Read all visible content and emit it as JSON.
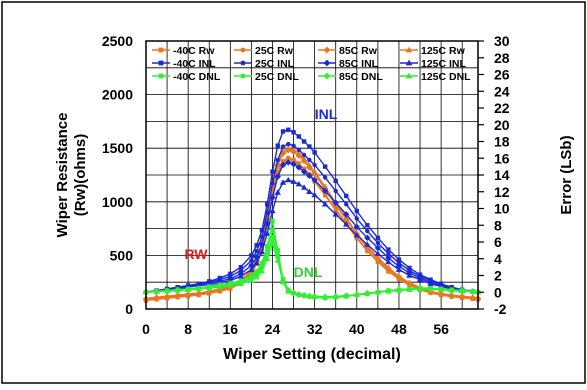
{
  "chart_data": {
    "type": "line",
    "x": [
      0,
      2,
      4,
      6,
      8,
      10,
      12,
      14,
      16,
      18,
      20,
      21,
      22,
      23,
      24,
      25,
      26,
      27,
      28,
      29,
      30,
      31,
      32,
      34,
      36,
      38,
      40,
      42,
      44,
      46,
      48,
      50,
      52,
      54,
      56,
      58,
      60,
      62,
      63
    ],
    "xlabel": "Wiper Setting (decimal)",
    "ylabel_left": [
      "Wiper Resistance",
      "(Rw)(ohms)"
    ],
    "ylabel_right": "Error (LSb)",
    "xlim": [
      0,
      63
    ],
    "ylim_left": [
      0,
      2500
    ],
    "ylim_right": [
      -2,
      30
    ],
    "x_ticks": [
      "0",
      "8",
      "16",
      "24",
      "32",
      "40",
      "48",
      "56"
    ],
    "y_ticks_left": [
      "0",
      "500",
      "1000",
      "1500",
      "2000",
      "2500"
    ],
    "y_ticks_right": [
      "-2",
      "0",
      "2",
      "4",
      "6",
      "8",
      "10",
      "12",
      "14",
      "16",
      "18",
      "20",
      "22",
      "24",
      "26",
      "28",
      "30"
    ],
    "grid": true,
    "legend_position": "top",
    "annotations": [
      {
        "text": "INL",
        "color": "#1a2ad6"
      },
      {
        "text": "RW",
        "color": "#e01b1b"
      },
      {
        "text": "DNL",
        "color": "#33cc33"
      }
    ],
    "series": [
      {
        "name": "-40C Rw",
        "axis": "left",
        "color": "#e87722",
        "marker": "square",
        "values": [
          80,
          90,
          100,
          110,
          120,
          130,
          145,
          165,
          190,
          240,
          330,
          420,
          560,
          780,
          1060,
          1270,
          1370,
          1400,
          1385,
          1350,
          1300,
          1250,
          1190,
          1060,
          920,
          790,
          660,
          540,
          440,
          350,
          280,
          220,
          180,
          150,
          130,
          115,
          105,
          95,
          90
        ]
      },
      {
        "name": "25C Rw",
        "axis": "left",
        "color": "#e87722",
        "marker": "circle",
        "values": [
          90,
          100,
          110,
          120,
          130,
          140,
          155,
          175,
          200,
          250,
          340,
          430,
          570,
          790,
          1070,
          1280,
          1380,
          1410,
          1395,
          1360,
          1310,
          1260,
          1200,
          1070,
          930,
          800,
          670,
          550,
          450,
          360,
          290,
          230,
          185,
          155,
          135,
          120,
          110,
          100,
          95
        ]
      },
      {
        "name": "85C Rw",
        "axis": "left",
        "color": "#e87722",
        "marker": "diamond",
        "values": [
          95,
          105,
          115,
          125,
          135,
          145,
          160,
          180,
          210,
          260,
          350,
          450,
          600,
          830,
          1120,
          1340,
          1450,
          1480,
          1465,
          1430,
          1380,
          1320,
          1260,
          1120,
          970,
          835,
          700,
          575,
          470,
          375,
          300,
          240,
          195,
          160,
          140,
          125,
          115,
          105,
          100
        ]
      },
      {
        "name": "125C Rw",
        "axis": "left",
        "color": "#e87722",
        "marker": "triangle",
        "values": [
          100,
          110,
          120,
          130,
          140,
          150,
          165,
          190,
          220,
          270,
          360,
          460,
          620,
          850,
          1140,
          1360,
          1470,
          1500,
          1485,
          1450,
          1400,
          1340,
          1280,
          1140,
          990,
          850,
          710,
          585,
          480,
          385,
          305,
          245,
          200,
          165,
          145,
          130,
          120,
          110,
          105
        ]
      },
      {
        "name": "-40C INL",
        "axis": "right",
        "color": "#1a2ad6",
        "marker": "square",
        "values": [
          0,
          0.2,
          0.4,
          0.6,
          0.8,
          1.0,
          1.3,
          1.7,
          2.2,
          3.0,
          4.4,
          5.6,
          7.4,
          10.5,
          14.4,
          17.5,
          19.2,
          19.4,
          19.1,
          18.6,
          18.0,
          17.4,
          16.7,
          15.0,
          13.3,
          11.5,
          9.7,
          8.0,
          6.5,
          5.1,
          3.9,
          2.9,
          2.1,
          1.5,
          1.0,
          0.6,
          0.3,
          0.1,
          0
        ]
      },
      {
        "name": "25C INL",
        "axis": "right",
        "color": "#1a2ad6",
        "marker": "circle",
        "values": [
          0,
          0.2,
          0.4,
          0.6,
          0.8,
          1.0,
          1.2,
          1.5,
          1.9,
          2.6,
          3.8,
          4.9,
          6.6,
          9.5,
          13.0,
          15.8,
          17.4,
          17.7,
          17.5,
          17.0,
          16.4,
          15.8,
          15.2,
          13.7,
          12.1,
          10.5,
          8.8,
          7.3,
          5.9,
          4.6,
          3.5,
          2.6,
          1.9,
          1.4,
          0.9,
          0.5,
          0.3,
          0.1,
          0
        ]
      },
      {
        "name": "85C INL",
        "axis": "right",
        "color": "#1a2ad6",
        "marker": "diamond",
        "values": [
          0,
          0.1,
          0.3,
          0.5,
          0.7,
          0.9,
          1.1,
          1.3,
          1.6,
          2.2,
          3.2,
          4.2,
          5.7,
          8.2,
          11.3,
          13.8,
          15.2,
          15.5,
          15.3,
          14.9,
          14.4,
          13.9,
          13.4,
          12.1,
          10.7,
          9.3,
          7.8,
          6.5,
          5.3,
          4.1,
          3.1,
          2.3,
          1.7,
          1.2,
          0.8,
          0.5,
          0.2,
          0.1,
          0
        ]
      },
      {
        "name": "125C INL",
        "axis": "right",
        "color": "#1a2ad6",
        "marker": "triangle",
        "values": [
          0,
          0.1,
          0.3,
          0.4,
          0.6,
          0.8,
          0.9,
          1.1,
          1.4,
          1.9,
          2.7,
          3.5,
          4.8,
          7.0,
          9.7,
          11.9,
          13.1,
          13.4,
          13.2,
          12.9,
          12.5,
          12.0,
          11.6,
          10.5,
          9.3,
          8.1,
          6.8,
          5.7,
          4.6,
          3.6,
          2.7,
          2.0,
          1.5,
          1.0,
          0.7,
          0.4,
          0.2,
          0.1,
          0
        ]
      },
      {
        "name": "-40C DNL",
        "axis": "right",
        "color": "#33ee33",
        "marker": "square",
        "values": [
          0,
          0.1,
          0.2,
          0.3,
          0.4,
          0.5,
          0.7,
          0.9,
          1.1,
          1.4,
          2.0,
          2.5,
          3.5,
          5.5,
          8.5,
          5.0,
          1.6,
          0.3,
          -0.1,
          -0.3,
          -0.4,
          -0.5,
          -0.6,
          -0.7,
          -0.6,
          -0.5,
          -0.3,
          -0.2,
          0,
          0.2,
          0.3,
          0.4,
          0.5,
          0.5,
          0.4,
          0.3,
          0.2,
          0.1,
          0
        ]
      },
      {
        "name": "25C DNL",
        "axis": "right",
        "color": "#33ee33",
        "marker": "circle",
        "values": [
          0,
          0.1,
          0.2,
          0.3,
          0.4,
          0.5,
          0.6,
          0.8,
          1.0,
          1.3,
          1.8,
          2.3,
          3.2,
          5.0,
          7.5,
          4.6,
          1.4,
          0.2,
          -0.1,
          -0.3,
          -0.4,
          -0.5,
          -0.6,
          -0.6,
          -0.6,
          -0.5,
          -0.3,
          -0.2,
          0,
          0.2,
          0.3,
          0.4,
          0.5,
          0.5,
          0.4,
          0.3,
          0.2,
          0.1,
          0
        ]
      },
      {
        "name": "85C DNL",
        "axis": "right",
        "color": "#33ee33",
        "marker": "diamond",
        "values": [
          0,
          0.1,
          0.2,
          0.3,
          0.3,
          0.4,
          0.5,
          0.7,
          0.9,
          1.2,
          1.6,
          2.0,
          2.9,
          4.5,
          6.5,
          4.2,
          1.3,
          0.2,
          -0.1,
          -0.3,
          -0.4,
          -0.5,
          -0.5,
          -0.6,
          -0.5,
          -0.4,
          -0.3,
          -0.1,
          0,
          0.2,
          0.3,
          0.4,
          0.4,
          0.4,
          0.3,
          0.2,
          0.2,
          0.1,
          0
        ]
      },
      {
        "name": "125C DNL",
        "axis": "right",
        "color": "#33ee33",
        "marker": "triangle",
        "values": [
          0,
          0.1,
          0.1,
          0.2,
          0.3,
          0.4,
          0.5,
          0.6,
          0.8,
          1.0,
          1.4,
          1.8,
          2.5,
          4.0,
          5.8,
          3.8,
          1.2,
          0.1,
          -0.1,
          -0.2,
          -0.3,
          -0.4,
          -0.5,
          -0.5,
          -0.5,
          -0.4,
          -0.3,
          -0.1,
          0,
          0.1,
          0.2,
          0.3,
          0.4,
          0.4,
          0.3,
          0.2,
          0.1,
          0.1,
          0
        ]
      }
    ]
  }
}
